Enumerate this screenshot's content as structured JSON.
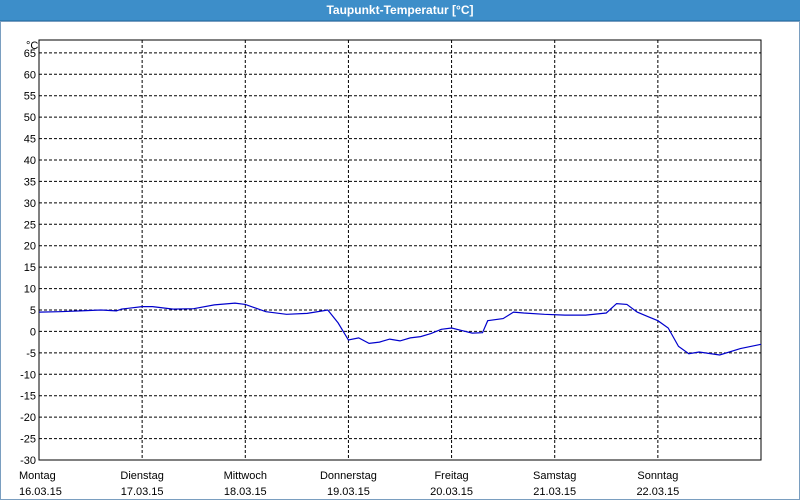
{
  "window": {
    "title": "Taupunkt-Temperatur [°C]"
  },
  "colors": {
    "title_bar": "#3d8ec9",
    "series": "#0000cc",
    "grid": "#000000"
  },
  "chart_data": {
    "type": "line",
    "title": "Taupunkt-Temperatur [°C]",
    "ylabel": "°C",
    "xlabel": "",
    "ylim": [
      -30,
      68
    ],
    "xlim": [
      0,
      7
    ],
    "y_ticks": [
      65,
      60,
      55,
      50,
      45,
      40,
      35,
      30,
      25,
      20,
      15,
      10,
      5,
      0,
      -5,
      -10,
      -15,
      -20,
      -25,
      -30
    ],
    "x_ticks": [
      {
        "day": "Montag",
        "date": "16.03.15"
      },
      {
        "day": "Dienstag",
        "date": "17.03.15"
      },
      {
        "day": "Mittwoch",
        "date": "18.03.15"
      },
      {
        "day": "Donnerstag",
        "date": "19.03.15"
      },
      {
        "day": "Freitag",
        "date": "20.03.15"
      },
      {
        "day": "Samstag",
        "date": "21.03.15"
      },
      {
        "day": "Sonntag",
        "date": "22.03.15"
      }
    ],
    "grid": true,
    "series": [
      {
        "x": [
          0,
          0.2,
          0.4,
          0.6,
          0.75,
          0.8,
          1.0,
          1.1,
          1.3,
          1.5,
          1.7,
          1.9,
          2.0,
          2.2,
          2.4,
          2.6,
          2.8,
          2.9,
          3.0,
          3.1,
          3.2,
          3.3,
          3.4,
          3.5,
          3.6,
          3.7,
          3.8,
          3.9,
          4.0,
          4.1,
          4.2,
          4.3,
          4.35,
          4.5,
          4.6,
          4.7,
          4.9,
          5.1,
          5.3,
          5.5,
          5.6,
          5.7,
          5.8,
          5.9,
          6.0,
          6.1,
          6.2,
          6.3,
          6.4,
          6.6,
          6.8,
          7.0
        ],
        "y": [
          4.5,
          4.6,
          4.8,
          5.0,
          4.8,
          5.2,
          5.8,
          5.8,
          5.2,
          5.3,
          6.2,
          6.6,
          6.3,
          4.6,
          4.0,
          4.2,
          5.0,
          2.0,
          -2.0,
          -1.5,
          -2.8,
          -2.5,
          -1.8,
          -2.2,
          -1.5,
          -1.2,
          -0.5,
          0.5,
          0.8,
          0.2,
          -0.4,
          -0.3,
          2.5,
          3.0,
          4.5,
          4.3,
          4.0,
          3.8,
          3.8,
          4.3,
          6.5,
          6.3,
          4.5,
          3.5,
          2.5,
          0.8,
          -3.5,
          -5.2,
          -4.8,
          -5.5,
          -4.0,
          -3.0
        ]
      }
    ]
  }
}
